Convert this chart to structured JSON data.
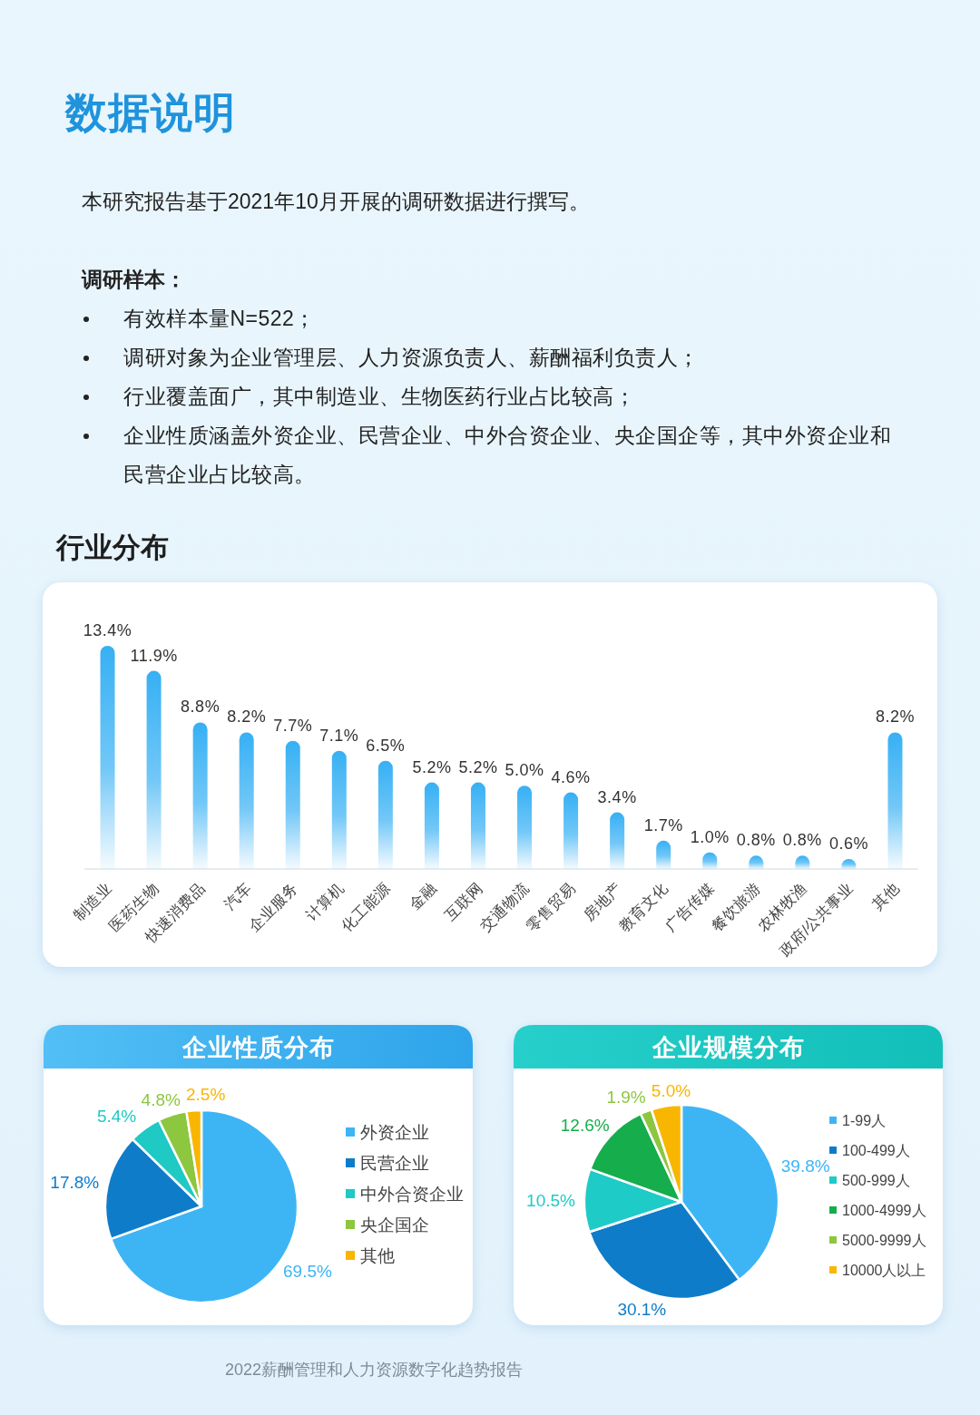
{
  "chart_data": [
    {
      "type": "other",
      "title": "数据说明",
      "annotations": [
        "本研究报告基于2021年10月开展的调研数据进行撰写。",
        "调研样本：",
        "有效样本量N=522；",
        "调研对象为企业管理层、人力资源负责人、薪酬福利负责人；",
        "行业覆盖面广，其中制造业、生物医药行业占比较高；",
        "企业性质涵盖外资企业、民营企业、中外合资企业、央企国企等，其中外资企业和民营企业占比较高。"
      ]
    },
    {
      "type": "bar",
      "title": "行业分布",
      "categories": [
        "制造业",
        "医药生物",
        "快速消费品",
        "汽车",
        "企业服务",
        "计算机",
        "化工能源",
        "金融",
        "互联网",
        "交通物流",
        "零售贸易",
        "房地产",
        "教育文化",
        "广告传媒",
        "餐饮旅游",
        "农林牧渔",
        "政府/公共事业",
        "其他"
      ],
      "values": [
        13.4,
        11.9,
        8.8,
        8.2,
        7.7,
        7.1,
        6.5,
        5.2,
        5.2,
        5.0,
        4.6,
        3.4,
        1.7,
        1.0,
        0.8,
        0.8,
        0.6,
        8.2
      ],
      "value_labels": [
        "13.4%",
        "11.9%",
        "8.8%",
        "8.2%",
        "7.7%",
        "7.1%",
        "6.5%",
        "5.2%",
        "5.2%",
        "5.0%",
        "4.6%",
        "3.4%",
        "1.7%",
        "1.0%",
        "0.8%",
        "0.8%",
        "0.6%",
        "8.2%"
      ],
      "color": "#36b0f4"
    },
    {
      "type": "pie",
      "title": "企业性质分布",
      "categories": [
        "外资企业",
        "民营企业",
        "中外合资企业",
        "央企国企",
        "其他"
      ],
      "values": [
        69.5,
        17.8,
        5.4,
        4.8,
        2.5
      ],
      "value_labels": [
        "69.5%",
        "17.8%",
        "5.4%",
        "4.8%",
        "2.5%"
      ],
      "colors": [
        "#3db5f5",
        "#0f7cc9",
        "#1fc9c4",
        "#8dc63f",
        "#f9b600"
      ],
      "legend": "right"
    },
    {
      "type": "pie",
      "title": "企业规模分布",
      "categories": [
        "1-99人",
        "100-499人",
        "500-999人",
        "1000-4999人",
        "5000-9999人",
        "10000人以上"
      ],
      "values": [
        39.8,
        30.1,
        10.5,
        12.6,
        1.9,
        5.0
      ],
      "value_labels": [
        "39.8%",
        "30.1%",
        "10.5%",
        "12.6%",
        "1.9%",
        "5.0%"
      ],
      "colors": [
        "#3db5f5",
        "#0f7cc9",
        "#1fcbc6",
        "#16ad4c",
        "#8dc63f",
        "#f9b600"
      ],
      "legend": "right",
      "annotations": [
        "2022薪酬管理和人力资源数字化趋势报告"
      ]
    }
  ]
}
